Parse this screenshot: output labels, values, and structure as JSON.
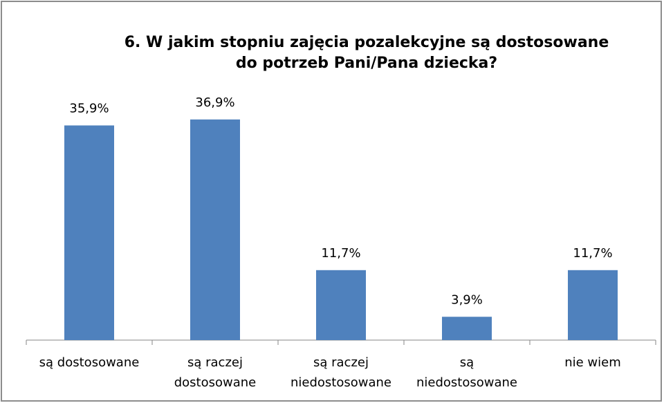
{
  "chart_data": {
    "type": "bar",
    "title": "6. W jakim stopniu zajęcia pozalekcyjne są dostosowane\ndo potrzeb Pani/Pana dziecka?",
    "categories": [
      "są dostosowane",
      "są raczej\ndostosowane",
      "są raczej\nniedostosowane",
      "są\nniedostosowane",
      "nie wiem"
    ],
    "values": [
      35.9,
      36.9,
      11.7,
      3.9,
      11.7
    ],
    "value_labels": [
      "35,9%",
      "36,9%",
      "11,7%",
      "3,9%",
      "11,7%"
    ],
    "color": "#4f81bd"
  }
}
